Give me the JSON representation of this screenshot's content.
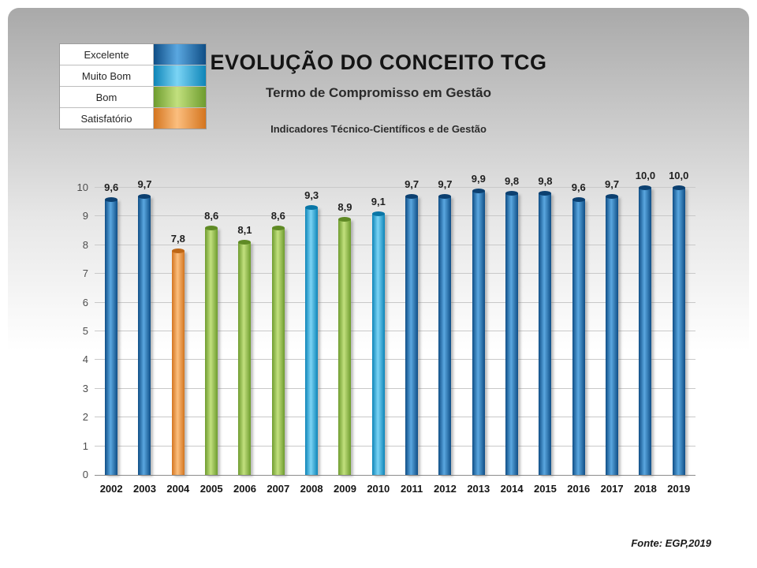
{
  "slide": {
    "title": "EVOLUÇÃO DO CONCEITO TCG",
    "subtitle": "Termo de Compromisso em Gestão",
    "subtitle2": "Indicadores Técnico-Científicos e de Gestão",
    "source": "Fonte: EGP,2019"
  },
  "legend": {
    "items": [
      {
        "label": "Excelente",
        "key": "excelente"
      },
      {
        "label": "Muito Bom",
        "key": "muito-bom"
      },
      {
        "label": "Bom",
        "key": "bom"
      },
      {
        "label": "Satisfatório",
        "key": "satisfatorio"
      }
    ]
  },
  "palette": {
    "excelente": {
      "top": "#0c4070",
      "dark": "#0f4e86",
      "light": "#5aa7e0",
      "base": "#1f71b8"
    },
    "muito-bom": {
      "top": "#0a76a6",
      "dark": "#0e85b8",
      "light": "#7bd4f5",
      "base": "#29abe2"
    },
    "bom": {
      "top": "#5f8a25",
      "dark": "#6e9c2e",
      "light": "#c2e07e",
      "base": "#92c83e"
    },
    "satisfatorio": {
      "top": "#be6716",
      "dark": "#d4751f",
      "light": "#fbbe7e",
      "base": "#f79240"
    }
  },
  "chart_data": {
    "type": "bar",
    "title": "EVOLUÇÃO DO CONCEITO TCG",
    "xlabel": "",
    "ylabel": "",
    "ylim": [
      0,
      10
    ],
    "yticks": [
      0,
      1,
      2,
      3,
      4,
      5,
      6,
      7,
      8,
      9,
      10
    ],
    "grid": true,
    "legend_position": "top-left",
    "categories": [
      "2002",
      "2003",
      "2004",
      "2005",
      "2006",
      "2007",
      "2008",
      "2009",
      "2010",
      "2011",
      "2012",
      "2013",
      "2014",
      "2015",
      "2016",
      "2017",
      "2018",
      "2019"
    ],
    "values": [
      9.6,
      9.7,
      7.8,
      8.6,
      8.1,
      8.6,
      9.3,
      8.9,
      9.1,
      9.7,
      9.7,
      9.9,
      9.8,
      9.8,
      9.6,
      9.7,
      10.0,
      10.0
    ],
    "value_labels": [
      "9,6",
      "9,7",
      "7,8",
      "8,6",
      "8,1",
      "8,6",
      "9,3",
      "8,9",
      "9,1",
      "9,7",
      "9,7",
      "9,9",
      "9,8",
      "9,8",
      "9,6",
      "9,7",
      "10,0",
      "10,0"
    ],
    "bar_series_keys": [
      "excelente",
      "excelente",
      "satisfatorio",
      "bom",
      "bom",
      "bom",
      "muito-bom",
      "bom",
      "muito-bom",
      "excelente",
      "excelente",
      "excelente",
      "excelente",
      "excelente",
      "excelente",
      "excelente",
      "excelente",
      "excelente"
    ]
  }
}
